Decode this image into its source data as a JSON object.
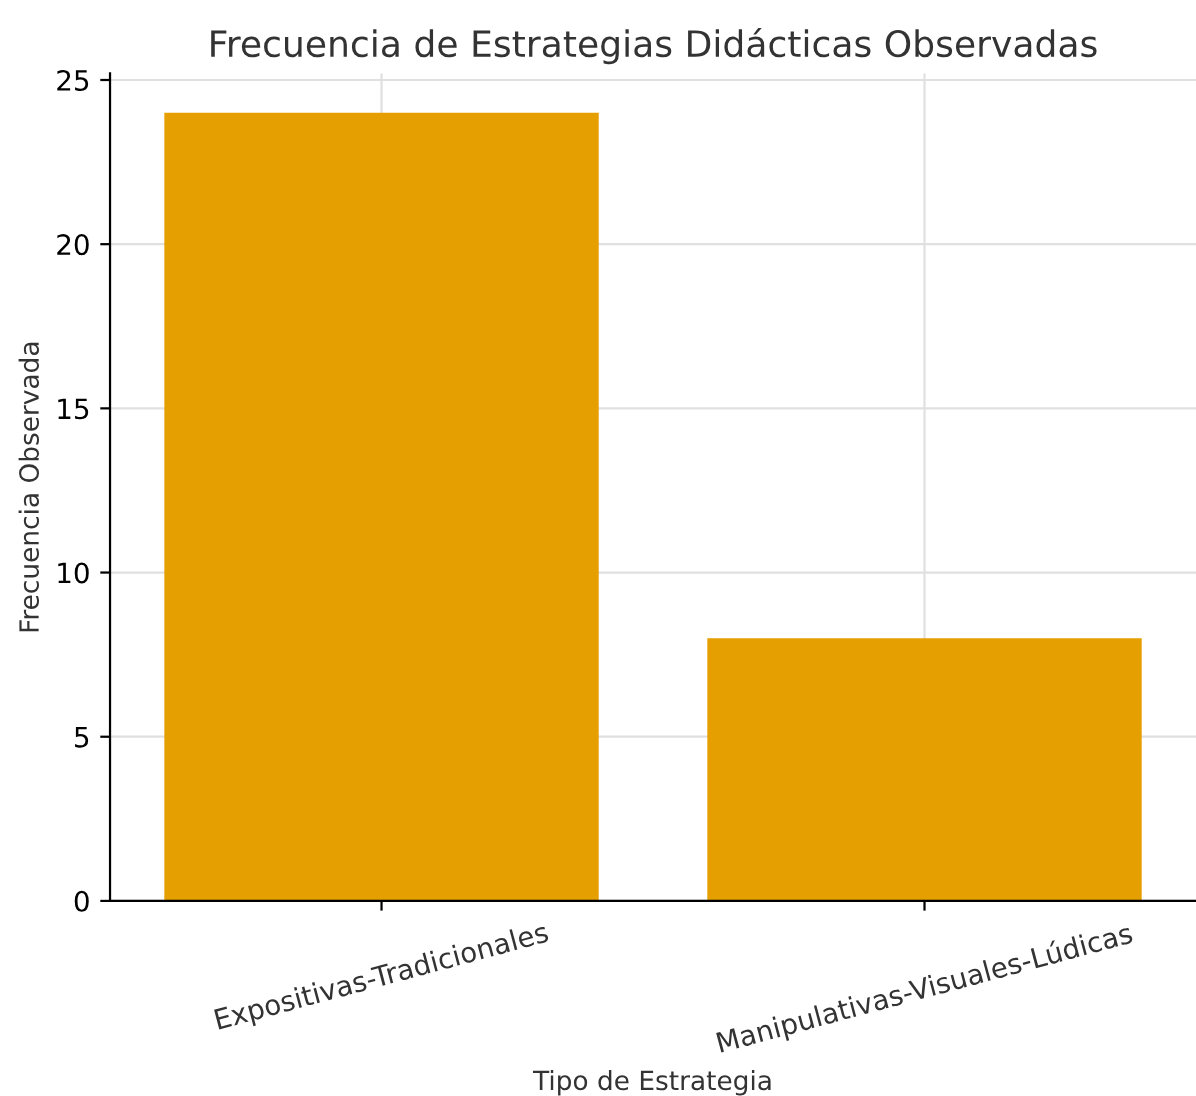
{
  "chart_data": {
    "type": "bar",
    "title": "Frecuencia de Estrategias Didácticas Observadas",
    "xlabel": "Tipo de Estrategia",
    "ylabel": "Frecuencia Observada",
    "categories": [
      "Expositivas-Tradicionales",
      "Manipulativas-Visuales-Lúdicas"
    ],
    "values": [
      24,
      8
    ],
    "color": "#e69f00",
    "ylim": [
      0,
      25.2
    ],
    "yticks": [
      0,
      5,
      10,
      15,
      20,
      25
    ],
    "grid": true
  }
}
